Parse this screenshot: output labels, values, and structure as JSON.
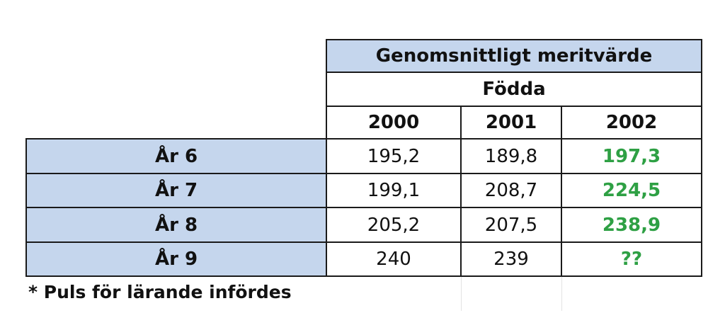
{
  "table": {
    "title": "Genomsnittligt meritvärde",
    "subtitle": "Födda",
    "columns": [
      "2000",
      "2001",
      "2002"
    ],
    "rows": [
      {
        "label": "År 6",
        "values": [
          "195,2",
          "189,8",
          "197,3"
        ]
      },
      {
        "label": "År 7",
        "values": [
          "199,1",
          "208,7",
          "224,5"
        ]
      },
      {
        "label": "År 8",
        "values": [
          "205,2",
          "207,5",
          "238,9"
        ]
      },
      {
        "label": "År 9",
        "values": [
          "240",
          "239",
          "??"
        ]
      }
    ],
    "highlight_color": "#2ea044",
    "header_fill": "#c5d6ed"
  },
  "footnote": "* Puls för lärande infördes"
}
